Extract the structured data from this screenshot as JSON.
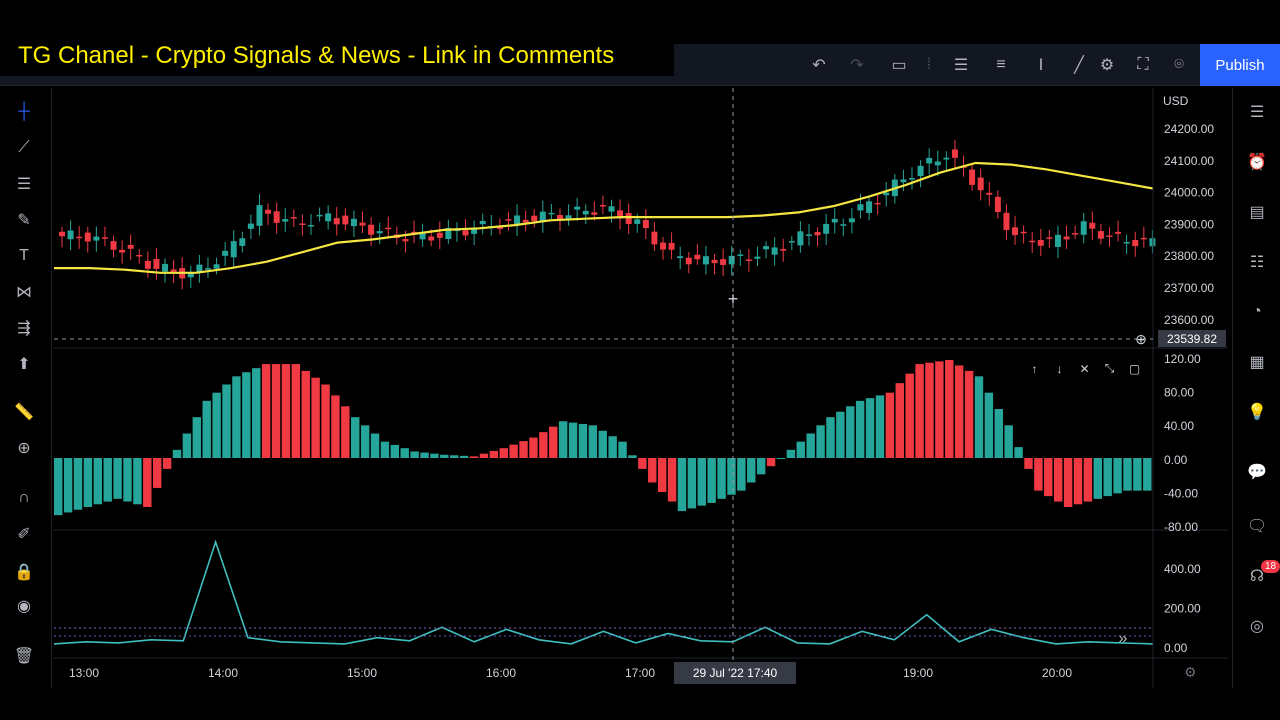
{
  "banner": {
    "text": "TG Chanel - Crypto Signals & News - Link in Comments"
  },
  "topbar": {
    "publish_label": "Publish",
    "icons": [
      "undo-icon",
      "redo-icon",
      "rectangle-icon",
      "layout-icon",
      "indicators-icon",
      "templates-icon",
      "text-tool-icon",
      "line-tool-icon",
      "settings-icon",
      "fullscreen-icon",
      "camera-icon"
    ]
  },
  "left_toolbar": {
    "icons": [
      "crosshair-icon",
      "trendline-icon",
      "fib-icon",
      "brush-icon",
      "text-icon",
      "pattern-icon",
      "forecast-icon",
      "arrow-up-icon",
      "ruler-icon",
      "zoom-icon",
      "magnet-icon",
      "lock-drawing-icon",
      "lock-icon",
      "eye-icon",
      "trash-icon"
    ]
  },
  "right_toolbar": {
    "icons": [
      "watchlist-icon",
      "alarm-icon",
      "news-icon",
      "calendar-icon",
      "hotlist-icon",
      "ideas-icon",
      "calculator-icon",
      "chat-icon",
      "messages-icon",
      "streams-icon",
      "broadcast-icon"
    ],
    "alert_count": "18"
  },
  "chart": {
    "currency": "USD",
    "crosshair_price": "23539.82",
    "crosshair_time": "29 Jul '22   17:40",
    "price_axis": [
      "24200.00",
      "24100.00",
      "24000.00",
      "23900.00",
      "23800.00",
      "23700.00",
      "23600.00"
    ],
    "osc_axis": [
      "120.00",
      "80.00",
      "40.00",
      "0.00",
      "-40.00",
      "-80.00"
    ],
    "vol_axis": [
      "400.00",
      "200.00",
      "0.00"
    ],
    "time_axis": [
      "13:00",
      "14:00",
      "15:00",
      "16:00",
      "17:00",
      "19:00",
      "20:00"
    ],
    "colors": {
      "up": "#26a69a",
      "down": "#ef3a44",
      "ma": "#f5e642",
      "osc_line": "#3fbfbf",
      "background": "#000000"
    }
  },
  "chart_data": [
    {
      "type": "candlestick",
      "title": "",
      "x": [
        "12:45",
        "13:00",
        "13:15",
        "13:30",
        "13:45",
        "14:00",
        "14:15",
        "14:30",
        "14:45",
        "15:00",
        "15:15",
        "15:30",
        "15:45",
        "16:00",
        "16:15",
        "16:30",
        "16:45",
        "17:00",
        "17:15",
        "17:30",
        "17:45",
        "18:00",
        "18:15",
        "18:30",
        "18:45",
        "19:00",
        "19:15",
        "19:30",
        "19:45",
        "20:00",
        "20:15",
        "20:30"
      ],
      "close": [
        23860,
        23820,
        23760,
        23740,
        23800,
        23940,
        23900,
        23920,
        23890,
        23860,
        23860,
        23880,
        23900,
        23920,
        23930,
        23950,
        23900,
        23800,
        23780,
        23790,
        23820,
        23870,
        23910,
        23980,
        24060,
        24120,
        24010,
        23860,
        23840,
        23890,
        23850,
        23840
      ],
      "ma": [
        23760,
        23760,
        23755,
        23745,
        23745,
        23760,
        23780,
        23810,
        23840,
        23850,
        23865,
        23880,
        23885,
        23895,
        23910,
        23915,
        23920,
        23920,
        23920,
        23920,
        23925,
        23935,
        23955,
        23985,
        24020,
        24060,
        24090,
        24085,
        24070,
        24050,
        24030,
        24010
      ],
      "ylim": [
        23600,
        24200
      ]
    },
    {
      "type": "bar",
      "title": "",
      "values": [
        -70,
        -60,
        -50,
        -60,
        10,
        70,
        100,
        115,
        115,
        90,
        50,
        20,
        8,
        4,
        2,
        12,
        25,
        45,
        40,
        20,
        -30,
        -65,
        -55,
        -40,
        -10,
        20,
        50,
        70,
        80,
        115,
        120,
        100,
        40,
        -40,
        -60,
        -50,
        -40
      ],
      "colors_up_down": "up=#26a69a, down=#ef3a44",
      "ylim": [
        -80,
        120
      ]
    },
    {
      "type": "line",
      "title": "",
      "values": [
        10,
        20,
        15,
        30,
        25,
        500,
        40,
        20,
        15,
        10,
        40,
        25,
        90,
        20,
        80,
        30,
        10,
        70,
        15,
        60,
        25,
        20,
        90,
        15,
        10,
        70,
        30,
        150,
        20,
        80,
        40,
        10,
        20,
        15,
        10
      ],
      "ylim": [
        0,
        500
      ]
    }
  ]
}
